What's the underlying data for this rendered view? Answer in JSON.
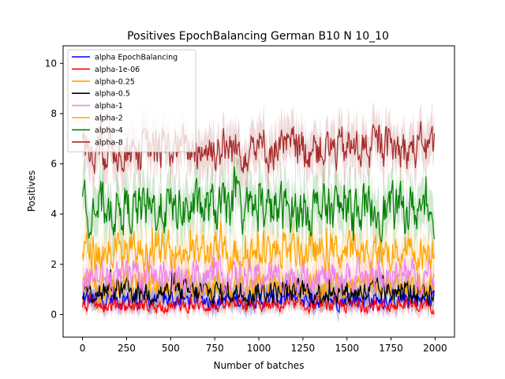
{
  "chart_data": {
    "type": "line",
    "title": "Positives EpochBalancing German B10 N 10_10",
    "xlabel": "Number of batches",
    "ylabel": "Positives",
    "xlim": [
      -110,
      2110
    ],
    "ylim": [
      -0.9,
      10.7
    ],
    "xticks": [
      0,
      250,
      500,
      750,
      1000,
      1250,
      1500,
      1750,
      2000
    ],
    "yticks": [
      0,
      2,
      4,
      6,
      8,
      10
    ],
    "n_points": 2000,
    "grid": false,
    "legend_position": "upper-left",
    "series": [
      {
        "name": "alpha EpochBalancing",
        "color": "#0000ff",
        "mean": 0.6,
        "spread": 0.35,
        "lo": 0.0,
        "hi": 2.4
      },
      {
        "name": "alpha-1e-06",
        "color": "#ff0000",
        "mean": 0.35,
        "spread": 0.25,
        "lo": 0.0,
        "hi": 1.2
      },
      {
        "name": "alpha-0.25",
        "color": "#ffa500",
        "mean": 1.1,
        "spread": 0.5,
        "lo": 0.1,
        "hi": 3.0
      },
      {
        "name": "alpha-0.5",
        "color": "#000000",
        "mean": 0.9,
        "spread": 0.45,
        "lo": 0.0,
        "hi": 2.6
      },
      {
        "name": "alpha-1",
        "color": "#ee82ee",
        "mean": 1.5,
        "spread": 0.6,
        "lo": 0.3,
        "hi": 3.5
      },
      {
        "name": "alpha-2",
        "color": "#ffa500",
        "mean": 2.5,
        "spread": 0.7,
        "lo": 0.8,
        "hi": 4.6
      },
      {
        "name": "alpha-4",
        "color": "#008000",
        "mean": 4.2,
        "spread": 0.9,
        "lo": 1.8,
        "hi": 7.0
      },
      {
        "name": "alpha-8",
        "color": "#a52a2a",
        "mean": 6.6,
        "spread": 0.8,
        "lo": 3.5,
        "hi": 9.2
      }
    ]
  }
}
